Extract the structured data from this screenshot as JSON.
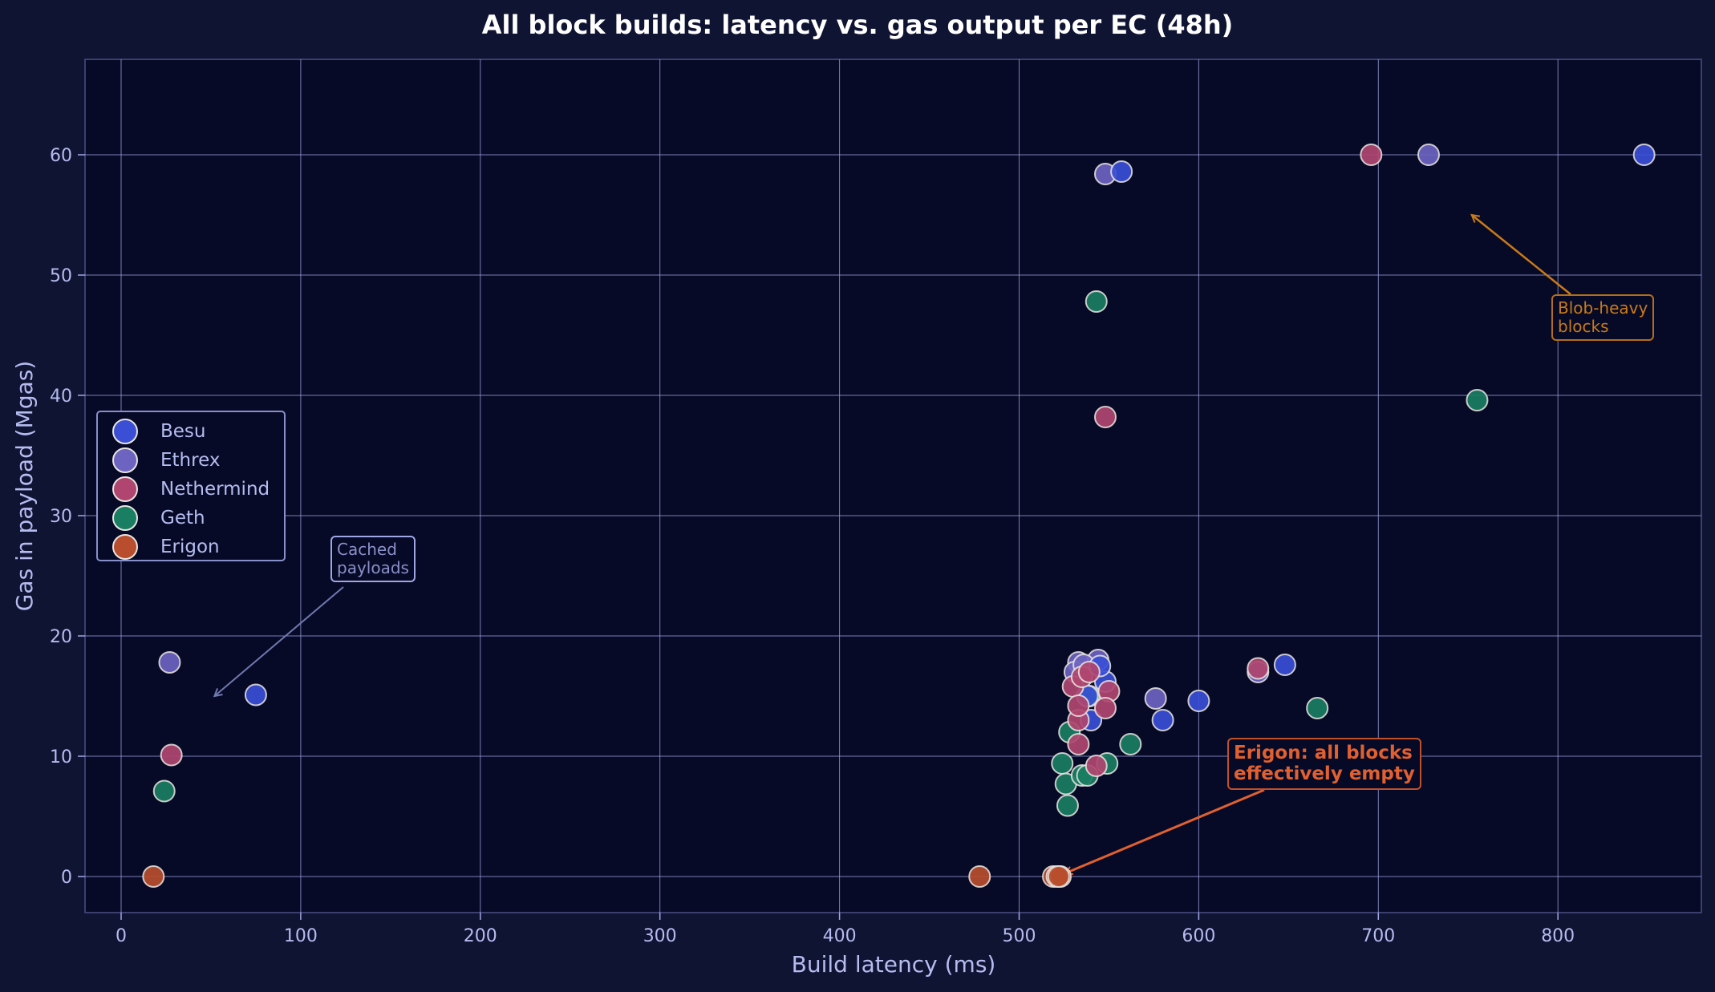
{
  "chart_data": {
    "type": "scatter",
    "title": "All block builds: latency vs. gas output per EC (48h)",
    "xlabel": "Build latency (ms)",
    "ylabel": "Gas in payload (Mgas)",
    "xlim": [
      -20,
      880
    ],
    "ylim": [
      -3,
      68
    ],
    "xticks": [
      0,
      100,
      200,
      300,
      400,
      500,
      600,
      700,
      800
    ],
    "yticks": [
      0,
      10,
      20,
      30,
      40,
      50,
      60
    ],
    "grid": true,
    "legend_position": "center left",
    "series": [
      {
        "name": "Besu",
        "color": "#3a4fd6",
        "points": [
          [
            75,
            15.1
          ],
          [
            557,
            58.6
          ],
          [
            848,
            60.0
          ],
          [
            648,
            17.6
          ],
          [
            600,
            14.6
          ],
          [
            580,
            13.0
          ],
          [
            540,
            13.0
          ],
          [
            548,
            16.2
          ],
          [
            545,
            17.5
          ],
          [
            538,
            15.0
          ]
        ]
      },
      {
        "name": "Ethrex",
        "color": "#6c64c0",
        "points": [
          [
            27,
            17.8
          ],
          [
            548,
            58.4
          ],
          [
            728,
            60.0
          ],
          [
            576,
            14.8
          ],
          [
            633,
            17.0
          ],
          [
            533,
            17.8
          ],
          [
            544,
            18.0
          ],
          [
            531,
            17.0
          ],
          [
            536,
            17.6
          ]
        ]
      },
      {
        "name": "Nethermind",
        "color": "#b04670",
        "points": [
          [
            28,
            10.1
          ],
          [
            548,
            38.2
          ],
          [
            696,
            60.0
          ],
          [
            633,
            17.3
          ],
          [
            550,
            15.4
          ],
          [
            548,
            14.0
          ],
          [
            533,
            13.0
          ],
          [
            533,
            11.0
          ],
          [
            530,
            15.8
          ],
          [
            535,
            16.6
          ],
          [
            539,
            17.0
          ],
          [
            543,
            9.2
          ],
          [
            533,
            14.2
          ]
        ]
      },
      {
        "name": "Geth",
        "color": "#1a7e62",
        "points": [
          [
            24,
            7.1
          ],
          [
            543,
            47.8
          ],
          [
            755,
            39.6
          ],
          [
            666,
            14.0
          ],
          [
            562,
            11.0
          ],
          [
            549,
            9.4
          ],
          [
            528,
            12.0
          ],
          [
            524,
            9.4
          ],
          [
            539,
            15.0
          ],
          [
            526,
            7.7
          ],
          [
            527,
            5.9
          ],
          [
            535,
            8.4
          ],
          [
            538,
            8.4
          ]
        ]
      },
      {
        "name": "Erigon",
        "color": "#b84e2e",
        "points": [
          [
            18,
            0.0
          ],
          [
            478,
            0.0
          ],
          [
            519,
            0.0
          ],
          [
            521,
            0.0
          ],
          [
            523,
            0.0
          ],
          [
            522,
            0.0
          ]
        ]
      }
    ],
    "annotations": [
      {
        "text": "Cached payloads",
        "line1": "Cached",
        "line2": "payloads",
        "arrow_to": [
          52,
          15
        ],
        "color": "#8a90c8"
      },
      {
        "text": "Blob-heavy blocks",
        "line1": "Blob-heavy",
        "line2": "blocks",
        "arrow_to": [
          752,
          55
        ],
        "color": "#c87a1a"
      },
      {
        "text": "Erigon: all blocks effectively empty",
        "line1": "Erigon: all blocks",
        "line2": "effectively empty",
        "arrow_to": [
          522,
          0
        ],
        "color": "#e06030"
      }
    ]
  },
  "colors": {
    "figure_bg": "#101433",
    "plot_bg": "#070a26",
    "grid": "#9ea6e6",
    "text": "#b4bcf0",
    "title": "#ffffff",
    "marker_edge": "#e8e4e0"
  }
}
